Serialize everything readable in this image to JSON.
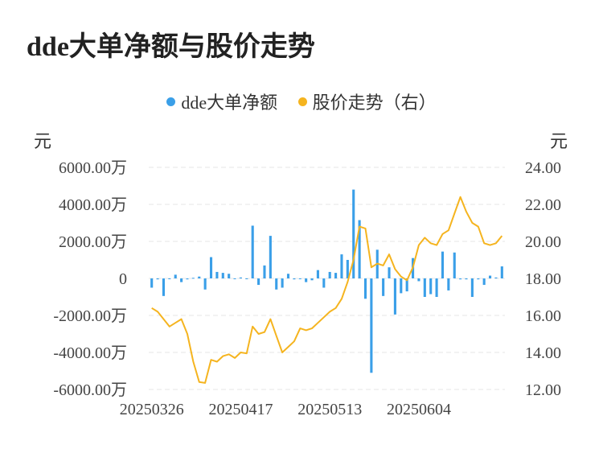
{
  "title": "dde大单净额与股价走势",
  "legend": [
    {
      "label": "dde大单净额",
      "color": "#3a9fe8"
    },
    {
      "label": "股价走势（右）",
      "color": "#f5b41f"
    }
  ],
  "left_unit": "元",
  "right_unit": "元",
  "chart_data": {
    "type": "bar+line",
    "x": [
      "20250326",
      "20250327",
      "20250328",
      "20250331",
      "20250401",
      "20250402",
      "20250403",
      "20250407",
      "20250408",
      "20250409",
      "20250410",
      "20250411",
      "20250414",
      "20250415",
      "20250416",
      "20250417",
      "20250418",
      "20250421",
      "20250422",
      "20250423",
      "20250424",
      "20250425",
      "20250428",
      "20250429",
      "20250430",
      "20250506",
      "20250507",
      "20250508",
      "20250509",
      "20250512",
      "20250513",
      "20250514",
      "20250515",
      "20250516",
      "20250519",
      "20250520",
      "20250521",
      "20250522",
      "20250523",
      "20250526",
      "20250527",
      "20250528",
      "20250529",
      "20250530",
      "20250603",
      "20250604",
      "20250605",
      "20250606",
      "20250609",
      "20250610",
      "20250611",
      "20250612",
      "20250613",
      "20250616",
      "20250617",
      "20250618",
      "20250619",
      "20250620",
      "20250623",
      "20250624"
    ],
    "x_tick_labels": [
      "20250326",
      "20250417",
      "20250513",
      "20250604"
    ],
    "series": [
      {
        "name": "dde大单净额",
        "type": "bar",
        "axis": "left",
        "color": "#3a9fe8",
        "values": [
          -500,
          -50,
          -950,
          -30,
          200,
          -200,
          -50,
          30,
          100,
          -600,
          1150,
          350,
          300,
          250,
          -20,
          50,
          -20,
          2850,
          -350,
          700,
          2300,
          -600,
          -500,
          250,
          -50,
          -30,
          -200,
          -100,
          450,
          -500,
          350,
          300,
          1300,
          1000,
          4800,
          3150,
          -1100,
          -5100,
          1550,
          -950,
          600,
          -1950,
          -800,
          -700,
          1100,
          -150,
          -1000,
          -850,
          -1000,
          1450,
          -650,
          1400,
          -50,
          -50,
          -1000,
          -50,
          -350,
          150,
          50,
          650
        ]
      },
      {
        "name": "股价走势（右）",
        "type": "line",
        "axis": "right",
        "color": "#f5b41f",
        "values": [
          16.4,
          16.2,
          15.8,
          15.4,
          15.6,
          15.8,
          15.0,
          13.5,
          12.4,
          12.35,
          13.6,
          13.5,
          13.8,
          13.9,
          13.7,
          14.0,
          13.95,
          15.4,
          15.0,
          15.1,
          15.8,
          14.9,
          14.0,
          14.3,
          14.6,
          15.3,
          15.2,
          15.3,
          15.6,
          15.9,
          16.2,
          16.4,
          16.9,
          17.8,
          19.0,
          20.8,
          20.7,
          18.6,
          18.8,
          18.7,
          19.3,
          18.5,
          18.1,
          17.9,
          18.6,
          19.8,
          20.2,
          19.9,
          19.8,
          20.4,
          20.6,
          21.5,
          22.4,
          21.6,
          21.0,
          20.8,
          19.9,
          19.8,
          19.9,
          20.3
        ]
      }
    ],
    "y_left": {
      "min": -6000,
      "max": 6000,
      "ticks": [
        "-6000.00万",
        "-4000.00万",
        "-2000.00万",
        "0",
        "2000.00万",
        "4000.00万",
        "6000.00万"
      ]
    },
    "y_right": {
      "min": 12,
      "max": 24,
      "ticks": [
        "12.00",
        "14.00",
        "16.00",
        "18.00",
        "20.00",
        "22.00",
        "24.00"
      ]
    }
  }
}
